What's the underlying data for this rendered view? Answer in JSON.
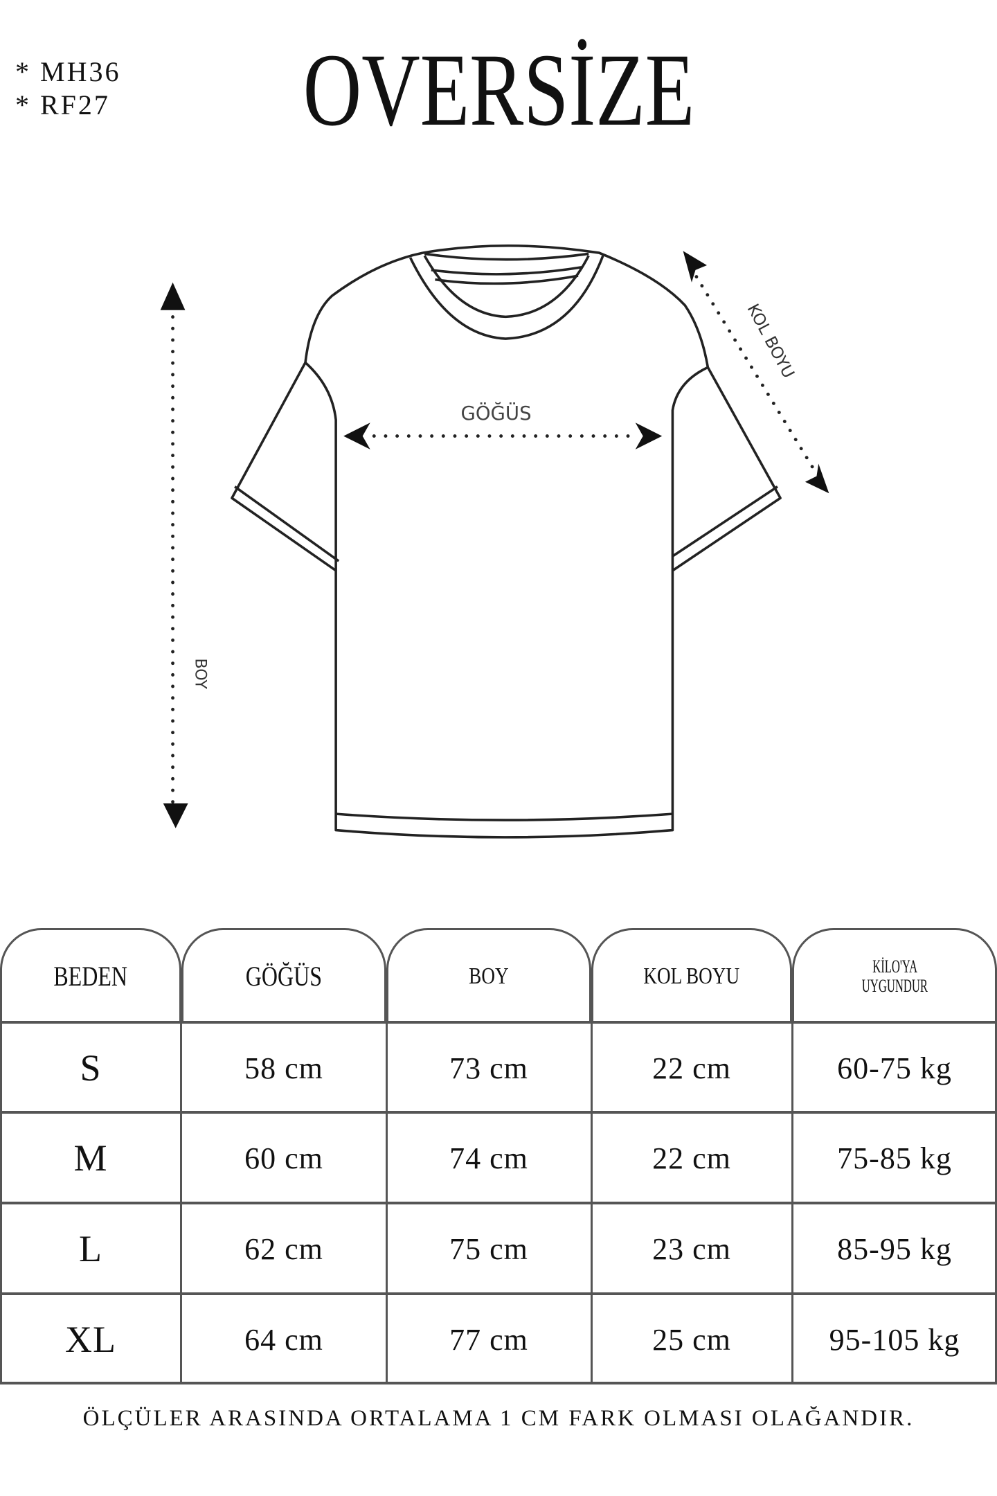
{
  "codes": [
    "* MH36",
    "* RF27"
  ],
  "title": "OVERSİZE",
  "diagram": {
    "chest_label": "GÖĞÜS",
    "length_label": "BOY",
    "sleeve_label": "KOL BOYU"
  },
  "table": {
    "headers": [
      "BEDEN",
      "GÖĞÜS",
      "BOY",
      "KOL BOYU",
      "KİLO'YA UYGUNDUR"
    ],
    "header_last_lines": [
      "KİLO'YA",
      "UYGUNDUR"
    ],
    "rows": [
      [
        "S",
        "58 cm",
        "73 cm",
        "22  cm",
        "60-75 kg"
      ],
      [
        "M",
        "60 cm",
        "74 cm",
        "22 cm",
        "75-85 kg"
      ],
      [
        "L",
        "62 cm",
        "75 cm",
        "23 cm",
        "85-95 kg"
      ],
      [
        "XL",
        "64 cm",
        "77 cm",
        "25 cm",
        "95-105 kg"
      ]
    ]
  },
  "footer": "ÖLÇÜLER ARASINDA ORTALAMA 1 CM FARK OLMASI OLAĞANDIR."
}
